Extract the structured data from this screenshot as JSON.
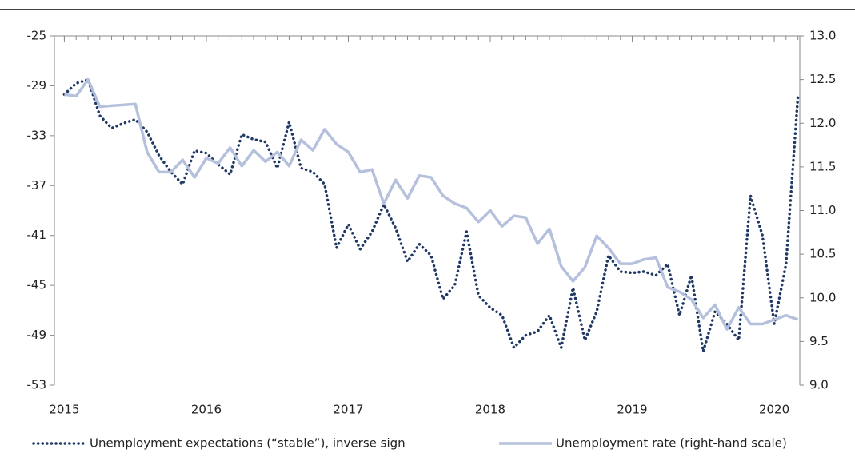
{
  "chart_data": {
    "type": "line",
    "x": [
      2015,
      2015.083,
      2015.167,
      2015.25,
      2015.333,
      2015.417,
      2015.5,
      2015.583,
      2015.667,
      2015.75,
      2015.833,
      2015.917,
      2016,
      2016.083,
      2016.167,
      2016.25,
      2016.333,
      2016.417,
      2016.5,
      2016.583,
      2016.667,
      2016.75,
      2016.833,
      2016.917,
      2017,
      2017.083,
      2017.167,
      2017.25,
      2017.333,
      2017.417,
      2017.5,
      2017.583,
      2017.667,
      2017.75,
      2017.833,
      2017.917,
      2018,
      2018.083,
      2018.167,
      2018.25,
      2018.333,
      2018.417,
      2018.5,
      2018.583,
      2018.667,
      2018.75,
      2018.833,
      2018.917,
      2019,
      2019.083,
      2019.167,
      2019.25,
      2019.333,
      2019.417,
      2019.5,
      2019.583,
      2019.667,
      2019.75,
      2019.833,
      2019.917,
      2020,
      2020.083,
      2020.167
    ],
    "series": [
      {
        "name": "Unemployment  expectations (“stable”), inverse sign",
        "color": "#1f3864",
        "style": "dotted",
        "axis": "y",
        "values": [
          -29.7,
          -28.8,
          -28.5,
          -31.4,
          -32.4,
          -32,
          -31.7,
          -32.7,
          -34.6,
          -35.9,
          -36.9,
          -34.2,
          -34.4,
          -35.3,
          -36.1,
          -32.9,
          -33.3,
          -33.5,
          -35.6,
          -31.9,
          -35.6,
          -35.9,
          -36.9,
          -42,
          -40.1,
          -42.1,
          -40.7,
          -38.5,
          -40.4,
          -43.1,
          -41.7,
          -42.6,
          -46.1,
          -45,
          -40.7,
          -45.8,
          -46.8,
          -47.4,
          -50,
          -49,
          -48.7,
          -47.4,
          -50,
          -45.2,
          -49.4,
          -47.1,
          -42.6,
          -43.9,
          -44,
          -43.9,
          -44.2,
          -43.3,
          -47.4,
          -44.2,
          -50.3,
          -47.1,
          -48.1,
          -49.4,
          -37.8,
          -41,
          -48.1,
          -43.3,
          -29.8
        ]
      },
      {
        "name": "Unemployment rate (right-hand scale)",
        "color": "#b4c0dc",
        "style": "solid",
        "axis": "y2",
        "values": [
          12.33,
          12.31,
          12.5,
          12.19,
          12.2,
          12.21,
          12.22,
          11.67,
          11.44,
          11.44,
          11.58,
          11.38,
          11.6,
          11.54,
          11.72,
          11.51,
          11.69,
          11.56,
          11.67,
          11.51,
          11.81,
          11.69,
          11.93,
          11.76,
          11.67,
          11.44,
          11.47,
          11.08,
          11.35,
          11.14,
          11.4,
          11.38,
          11.17,
          11.08,
          11.03,
          10.87,
          11.0,
          10.82,
          10.94,
          10.92,
          10.62,
          10.79,
          10.36,
          10.19,
          10.35,
          10.71,
          10.57,
          10.39,
          10.39,
          10.44,
          10.46,
          10.12,
          10.07,
          9.98,
          9.77,
          9.92,
          9.64,
          9.89,
          9.7,
          9.7,
          9.75,
          9.8,
          9.75
        ]
      }
    ],
    "xlim": [
      2014.93,
      2020.18
    ],
    "xticks": [
      2015,
      2016,
      2017,
      2018,
      2019,
      2020
    ],
    "ylim": [
      -53,
      -25
    ],
    "yticks": [
      -53,
      -49,
      -45,
      -41,
      -37,
      -33,
      -29,
      -25
    ],
    "y2lim": [
      9.0,
      13.0
    ],
    "y2ticks": [
      {
        "value": 9,
        "label": "9.0"
      },
      9.5,
      {
        "value": 10,
        "label": "10.0"
      },
      10.5,
      {
        "value": 11,
        "label": "11.0"
      },
      11.5,
      {
        "value": 12,
        "label": "12.0"
      },
      12.5,
      {
        "value": 13,
        "label": "13.0"
      }
    ],
    "legend": "bottom"
  }
}
